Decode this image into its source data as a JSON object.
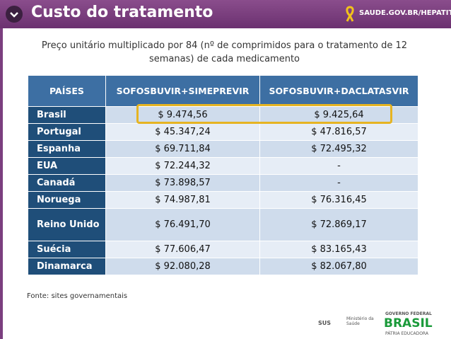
{
  "header": {
    "title": "Custo do tratamento",
    "site": "SAUDE.GOV.BR/HEPATITE"
  },
  "subtitle": "Preço unitário multiplicado por 84 (nº de comprimidos para o tratamento de 12 semanas) de cada medicamento",
  "table": {
    "columns": [
      "PAÍSES",
      "SOFOSBUVIR+SIMEPREVIR",
      "SOFOSBUVIR+DACLATASVIR"
    ],
    "rows": [
      [
        "Brasil",
        "$ 9.474,56",
        "$ 9.425,64"
      ],
      [
        "Portugal",
        "$ 45.347,24",
        "$ 47.816,57"
      ],
      [
        "Espanha",
        "$ 69.711,84",
        "$ 72.495,32"
      ],
      [
        "EUA",
        "$ 72.244,32",
        "-"
      ],
      [
        "Canadá",
        "$ 73.898,57",
        "-"
      ],
      [
        "Noruega",
        "$ 74.987,81",
        "$ 76.316,45"
      ],
      [
        "Reino Unido",
        "$ 76.491,70",
        "$ 72.869,17"
      ],
      [
        "Suécia",
        "$ 77.606,47",
        "$ 83.165,43"
      ],
      [
        "Dinamarca",
        "$ 92.080,28",
        "$ 82.067,80"
      ]
    ]
  },
  "source": "Fonte: sites governamentais",
  "footer": {
    "sus": "SUS",
    "ministry": "Ministério da Saúde",
    "gov": "GOVERNO FEDERAL",
    "brasil": "BRASIL",
    "motto": "PÁTRIA EDUCADORA"
  }
}
